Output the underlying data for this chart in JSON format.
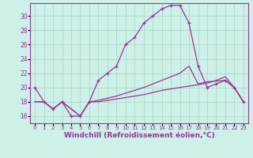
{
  "background_color": "#cdf0e8",
  "grid_color": "#b0d8cc",
  "line_color": "#993399",
  "xlabel": "Windchill (Refroidissement éolien,°C)",
  "xlabel_fontsize": 6.5,
  "xtick_fontsize": 5.0,
  "ytick_fontsize": 5.5,
  "xlim": [
    -0.5,
    23.5
  ],
  "ylim": [
    15.0,
    31.8
  ],
  "yticks": [
    16,
    18,
    20,
    22,
    24,
    26,
    28,
    30
  ],
  "xticks": [
    0,
    1,
    2,
    3,
    4,
    5,
    6,
    7,
    8,
    9,
    10,
    11,
    12,
    13,
    14,
    15,
    16,
    17,
    18,
    19,
    20,
    21,
    22,
    23
  ],
  "line1_x": [
    0,
    1,
    2,
    3,
    4,
    5,
    6,
    7,
    8,
    9,
    10,
    11,
    12,
    13,
    14,
    15,
    16,
    17,
    18,
    19,
    20,
    21,
    22,
    23
  ],
  "line1_y": [
    20,
    18,
    17,
    18,
    16,
    16,
    18,
    21,
    22,
    23,
    26,
    27,
    29,
    30,
    31,
    31.5,
    31.5,
    29,
    23,
    20,
    20.5,
    21,
    20,
    18
  ],
  "line2_x": [
    0,
    1,
    2,
    3,
    4,
    5,
    6,
    7,
    8,
    9,
    10,
    11,
    12,
    13,
    14,
    15,
    16,
    17,
    18,
    19,
    20,
    21,
    22,
    23
  ],
  "line2_y": [
    18,
    18,
    17,
    18,
    17,
    16,
    18,
    18.0,
    18.2,
    18.4,
    18.6,
    18.8,
    19.0,
    19.3,
    19.6,
    19.8,
    20.0,
    20.2,
    20.4,
    20.6,
    21.0,
    21.5,
    20.0,
    18.0
  ],
  "line3_x": [
    0,
    1,
    2,
    3,
    4,
    5,
    6,
    7,
    8,
    9,
    10,
    11,
    12,
    13,
    14,
    15,
    16,
    17,
    18,
    19,
    20,
    21,
    22,
    23
  ],
  "line3_y": [
    18,
    18,
    17,
    18,
    17,
    16,
    18,
    18.2,
    18.5,
    18.8,
    19.2,
    19.6,
    20.0,
    20.5,
    21.0,
    21.5,
    22.0,
    23.0,
    20.5,
    20.8,
    20.9,
    21.0,
    20.0,
    18.0
  ]
}
